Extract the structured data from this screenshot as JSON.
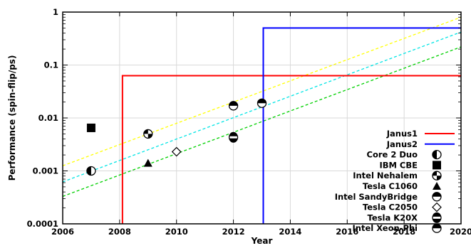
{
  "chart_data": {
    "type": "scatter",
    "xlabel": "Year",
    "ylabel": "Performance (spin-flip/ps)",
    "xlim": [
      2006,
      2020
    ],
    "ylim": [
      0.0001,
      1
    ],
    "y_scale": "log",
    "grid": true,
    "legend_position": "bottom-right",
    "x_ticks": [
      "2006",
      "2008",
      "2010",
      "2012",
      "2014",
      "2016",
      "2018",
      "2020"
    ],
    "y_ticks": [
      "0.0001",
      "0.001",
      "0.01",
      "0.1",
      "1"
    ],
    "steps": [
      {
        "name": "Janus1",
        "color": "#ff0000",
        "x_start": 2008.1,
        "level": 0.063
      },
      {
        "name": "Janus2",
        "color": "#0000ff",
        "x_start": 2013.05,
        "level": 0.5
      }
    ],
    "trend_lines": [
      {
        "color": "#ffff00",
        "points": [
          [
            2006,
            0.00125
          ],
          [
            2020,
            0.8
          ]
        ]
      },
      {
        "color": "#00e5e5",
        "points": [
          [
            2006,
            0.00062
          ],
          [
            2020,
            0.42
          ]
        ]
      },
      {
        "color": "#00d000",
        "points": [
          [
            2006,
            0.00033
          ],
          [
            2020,
            0.22
          ]
        ]
      }
    ],
    "points": [
      {
        "name": "Core 2 Duo",
        "marker": "half-left",
        "x": 2007,
        "y": 0.001
      },
      {
        "name": "IBM CBE",
        "marker": "square",
        "x": 2007,
        "y": 0.0065
      },
      {
        "name": "Intel Nehalem",
        "marker": "quad",
        "x": 2009,
        "y": 0.005
      },
      {
        "name": "Tesla C1060",
        "marker": "triangle",
        "x": 2009,
        "y": 0.0014
      },
      {
        "name": "Intel SandyBridge",
        "marker": "half-top",
        "x": 2012,
        "y": 0.017
      },
      {
        "name": "Tesla C2050",
        "marker": "diamond",
        "x": 2010,
        "y": 0.0023
      },
      {
        "name": "Tesla K20X",
        "marker": "band",
        "x": 2012,
        "y": 0.0043
      },
      {
        "name": "Intel Xeon-Phi",
        "marker": "half-top",
        "x": 2013,
        "y": 0.019
      }
    ]
  }
}
